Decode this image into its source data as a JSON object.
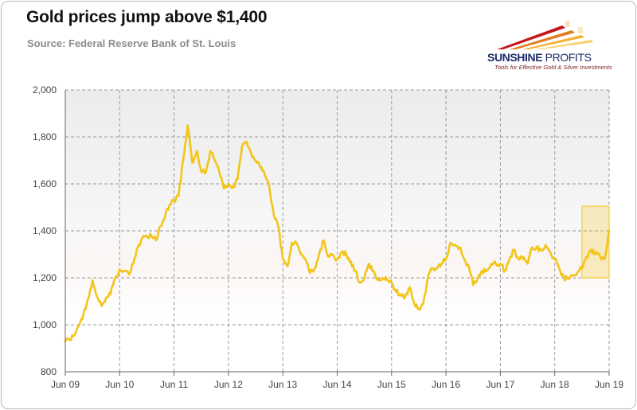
{
  "header": {
    "title": "Gold prices jump above $1,400",
    "source": "Source: Federal Reserve Bank of St. Louis"
  },
  "logo": {
    "name_bold": "SUNSHINE",
    "name_light": " PROFITS",
    "tagline": "Tools for Effective Gold & Silver Investments"
  },
  "chart_data": {
    "type": "line",
    "title": "Gold prices jump above $1,400",
    "subtitle": "Source: Federal Reserve Bank of St. Louis",
    "xlabel": "",
    "ylabel": "",
    "xlim": [
      "2009-06",
      "2019-06"
    ],
    "ylim": [
      800,
      2000
    ],
    "x_ticks": [
      "Jun 09",
      "Jun 10",
      "Jun 11",
      "Jun 12",
      "Jun 13",
      "Jun 14",
      "Jun 15",
      "Jun 16",
      "Jun 17",
      "Jun 18",
      "Jun 19"
    ],
    "y_ticks": [
      "800",
      "1,000",
      "1,200",
      "1,400",
      "1,600",
      "1,800",
      "2,000"
    ],
    "grid": true,
    "legend": "none",
    "series": [
      {
        "color": "#f2c518",
        "x": [
          "2009-06",
          "2009-07",
          "2009-08",
          "2009-09",
          "2009-10",
          "2009-11",
          "2009-12",
          "2010-01",
          "2010-02",
          "2010-03",
          "2010-04",
          "2010-05",
          "2010-06",
          "2010-07",
          "2010-08",
          "2010-09",
          "2010-10",
          "2010-11",
          "2010-12",
          "2011-01",
          "2011-02",
          "2011-03",
          "2011-04",
          "2011-05",
          "2011-06",
          "2011-07",
          "2011-08",
          "2011-09",
          "2011-10",
          "2011-11",
          "2011-12",
          "2012-01",
          "2012-02",
          "2012-03",
          "2012-04",
          "2012-05",
          "2012-06",
          "2012-07",
          "2012-08",
          "2012-09",
          "2012-10",
          "2012-11",
          "2012-12",
          "2013-01",
          "2013-02",
          "2013-03",
          "2013-04",
          "2013-05",
          "2013-06",
          "2013-07",
          "2013-08",
          "2013-09",
          "2013-10",
          "2013-11",
          "2013-12",
          "2014-01",
          "2014-02",
          "2014-03",
          "2014-04",
          "2014-05",
          "2014-06",
          "2014-07",
          "2014-08",
          "2014-09",
          "2014-10",
          "2014-11",
          "2014-12",
          "2015-01",
          "2015-02",
          "2015-03",
          "2015-04",
          "2015-05",
          "2015-06",
          "2015-07",
          "2015-08",
          "2015-09",
          "2015-10",
          "2015-11",
          "2015-12",
          "2016-01",
          "2016-02",
          "2016-03",
          "2016-04",
          "2016-05",
          "2016-06",
          "2016-07",
          "2016-08",
          "2016-09",
          "2016-10",
          "2016-11",
          "2016-12",
          "2017-01",
          "2017-02",
          "2017-03",
          "2017-04",
          "2017-05",
          "2017-06",
          "2017-07",
          "2017-08",
          "2017-09",
          "2017-10",
          "2017-11",
          "2017-12",
          "2018-01",
          "2018-02",
          "2018-03",
          "2018-04",
          "2018-05",
          "2018-06",
          "2018-07",
          "2018-08",
          "2018-09",
          "2018-10",
          "2018-11",
          "2018-12",
          "2019-01",
          "2019-02",
          "2019-03",
          "2019-04",
          "2019-05",
          "2019-06"
        ],
        "y": [
          930,
          935,
          955,
          995,
          1045,
          1110,
          1190,
          1120,
          1080,
          1115,
          1130,
          1200,
          1235,
          1230,
          1215,
          1260,
          1330,
          1370,
          1380,
          1380,
          1360,
          1420,
          1460,
          1510,
          1530,
          1550,
          1700,
          1850,
          1690,
          1740,
          1650,
          1650,
          1740,
          1700,
          1650,
          1580,
          1600,
          1590,
          1620,
          1760,
          1780,
          1730,
          1700,
          1670,
          1640,
          1590,
          1470,
          1420,
          1280,
          1250,
          1350,
          1350,
          1300,
          1280,
          1220,
          1240,
          1300,
          1360,
          1290,
          1300,
          1280,
          1310,
          1300,
          1270,
          1230,
          1180,
          1200,
          1260,
          1230,
          1190,
          1200,
          1190,
          1180,
          1140,
          1130,
          1120,
          1160,
          1090,
          1070,
          1090,
          1200,
          1240,
          1240,
          1260,
          1280,
          1350,
          1340,
          1330,
          1280,
          1250,
          1170,
          1200,
          1230,
          1230,
          1260,
          1260,
          1260,
          1230,
          1280,
          1320,
          1280,
          1280,
          1260,
          1330,
          1330,
          1320,
          1340,
          1310,
          1280,
          1240,
          1200,
          1195,
          1210,
          1225,
          1240,
          1290,
          1320,
          1300,
          1290,
          1280,
          1400
        ]
      }
    ],
    "annotation": {
      "type": "highlight-box",
      "x": [
        "2018-12",
        "2019-06"
      ],
      "y": [
        1200,
        1505
      ],
      "color": "#f2c518"
    }
  }
}
